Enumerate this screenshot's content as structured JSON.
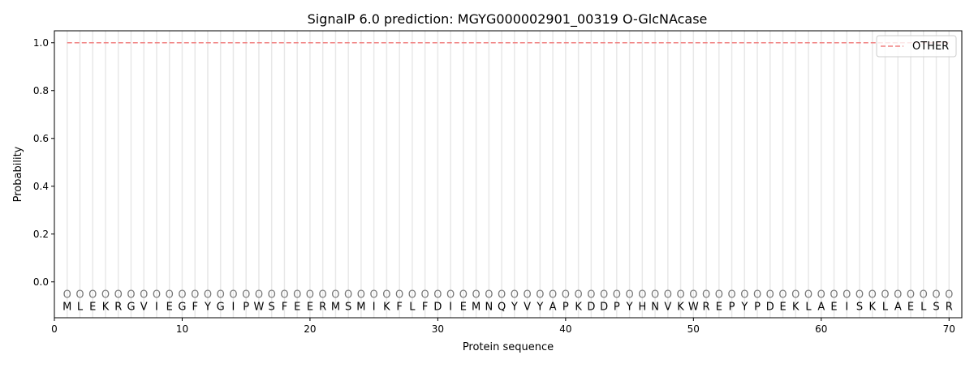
{
  "chart_data": {
    "type": "line",
    "title": "SignalP 6.0 prediction: MGYG000002901_00319 O-GlcNAcase",
    "xlabel": "Protein sequence",
    "ylabel": "Probability",
    "xlim": [
      0,
      71
    ],
    "ylim": [
      -0.15,
      1.05
    ],
    "xticks": [
      0,
      10,
      20,
      30,
      40,
      50,
      60,
      70
    ],
    "yticks": [
      "0.0",
      "0.2",
      "0.4",
      "0.6",
      "0.8",
      "1.0"
    ],
    "legend_position": "top-right",
    "sequence": [
      "M",
      "L",
      "E",
      "K",
      "R",
      "G",
      "V",
      "I",
      "E",
      "G",
      "F",
      "Y",
      "G",
      "I",
      "P",
      "W",
      "S",
      "F",
      "E",
      "E",
      "R",
      "M",
      "S",
      "M",
      "I",
      "K",
      "F",
      "L",
      "F",
      "D",
      "I",
      "E",
      "M",
      "N",
      "Q",
      "Y",
      "V",
      "Y",
      "A",
      "P",
      "K",
      "D",
      "D",
      "P",
      "Y",
      "H",
      "N",
      "V",
      "K",
      "W",
      "R",
      "E",
      "P",
      "Y",
      "P",
      "D",
      "E",
      "K",
      "L",
      "A",
      "E",
      "I",
      "S",
      "K",
      "L",
      "A",
      "E",
      "L",
      "S",
      "R"
    ],
    "region_marker": "O",
    "series": [
      {
        "name": "OTHER",
        "color": "#f08080",
        "style": "dashed",
        "x_range": [
          1,
          70
        ],
        "value": 1.0
      }
    ]
  }
}
